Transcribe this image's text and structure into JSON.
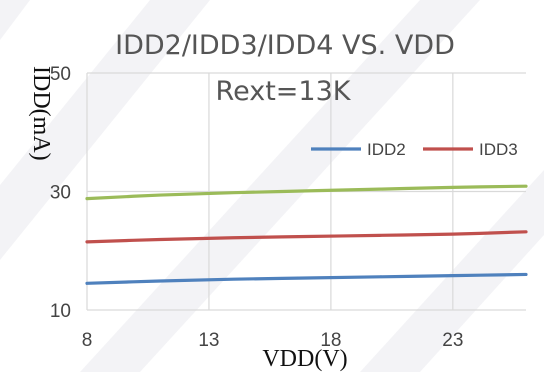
{
  "chart_data": {
    "type": "line",
    "title": "IDD2/IDD3/IDD4  VS. VDD",
    "subtitle": "Rext=13K",
    "xlabel": "VDD(V)",
    "ylabel": "IDD(mA)",
    "xlim": [
      8,
      26
    ],
    "ylim": [
      10,
      50
    ],
    "x_ticks": [
      8,
      13,
      18,
      23
    ],
    "y_ticks": [
      10,
      30,
      50
    ],
    "grid": true,
    "legend_position": "top-right",
    "series": [
      {
        "name": "IDD2",
        "color": "#4f81bd",
        "x": [
          8,
          11,
          14,
          17,
          20,
          23,
          26
        ],
        "y": [
          14.5,
          14.9,
          15.2,
          15.4,
          15.6,
          15.8,
          16.0
        ]
      },
      {
        "name": "IDD3",
        "color": "#c0504d",
        "x": [
          8,
          11,
          14,
          17,
          20,
          23,
          26
        ],
        "y": [
          21.5,
          21.9,
          22.2,
          22.4,
          22.6,
          22.8,
          23.2
        ]
      },
      {
        "name": "",
        "color": "#9bbb59",
        "x": [
          8,
          11,
          14,
          17,
          20,
          23,
          26
        ],
        "y": [
          28.8,
          29.4,
          29.8,
          30.1,
          30.4,
          30.7,
          30.9
        ]
      }
    ]
  }
}
